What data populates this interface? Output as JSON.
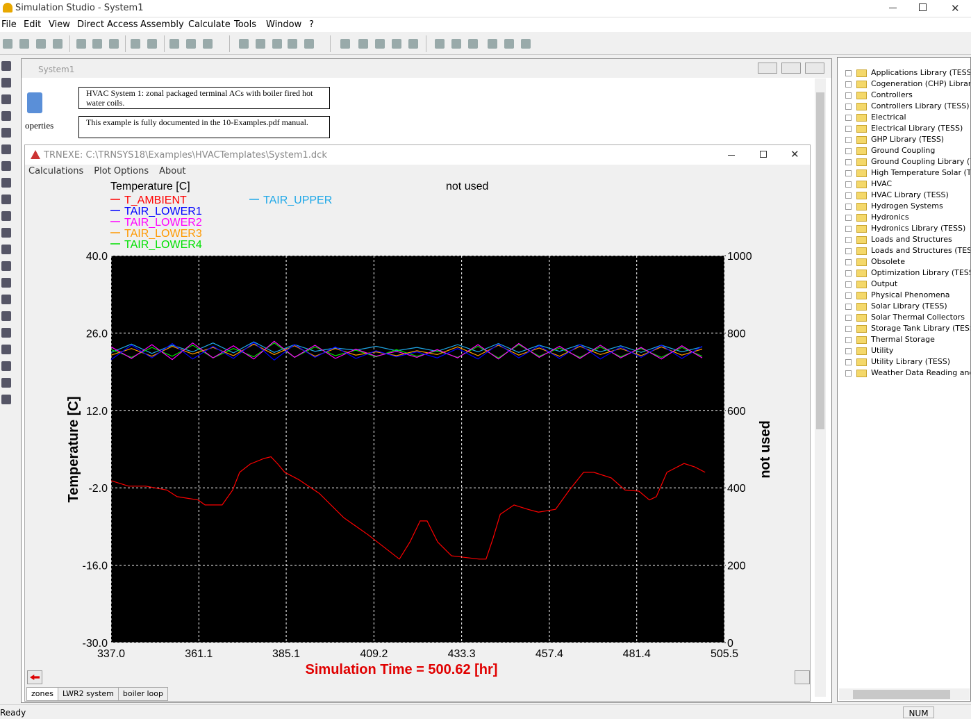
{
  "app": {
    "title": "Simulation Studio - System1",
    "menu": [
      "File",
      "Edit",
      "View",
      "Direct Access",
      "Assembly",
      "Calculate",
      "Tools",
      "Window",
      "?"
    ]
  },
  "child_window": {
    "title": "System1",
    "icon_label": "operties",
    "notes": [
      "HVAC System 1: zonal packaged terminal ACs with boiler fired hot water coils.",
      "This example is fully documented in the 10-Examples.pdf manual."
    ]
  },
  "plot_window": {
    "title": "TRNEXE: C:\\TRNSYS18\\Examples\\HVACTemplates\\System1.dck",
    "menu": [
      "Calculations",
      "Plot Options",
      "About"
    ],
    "time_label": "Simulation Time = 500.62 [hr]",
    "tabs": [
      "zones",
      "LWR2 system",
      "boiler loop"
    ]
  },
  "chart_data": {
    "type": "line",
    "left_legend_title": "Temperature [C]",
    "right_legend_title": "not used",
    "ylabel": "Temperature [C]",
    "y2label": "not used",
    "background": "#000000",
    "grid": true,
    "xlim": [
      337,
      505.5
    ],
    "ylim": [
      -30,
      40
    ],
    "y2lim": [
      0,
      1000
    ],
    "xticks": [
      {
        "value": 337,
        "label": "337.0"
      },
      361.1,
      385.1,
      409.2,
      433.3,
      457.4,
      481.4,
      505.5
    ],
    "yticks": [
      {
        "value": -30,
        "label": "-30.0"
      },
      {
        "value": -16,
        "label": "-16.0"
      },
      {
        "value": -2,
        "label": "-2.0"
      },
      {
        "value": 12,
        "label": "12.0"
      },
      {
        "value": 26,
        "label": "26.0"
      },
      {
        "value": 40,
        "label": "40.0"
      }
    ],
    "y2ticks": [
      0,
      200,
      400,
      600,
      800,
      1000
    ],
    "series": [
      {
        "name": "T_AMBIENT",
        "color": "#ff0000",
        "x": [
          337,
          341.8,
          346.5,
          352.3,
          355.1,
          360.9,
          362.8,
          367.5,
          370.4,
          372.3,
          375.2,
          379,
          380.9,
          382.8,
          384.7,
          388.5,
          394.2,
          400.9,
          407.6,
          416.2,
          419.1,
          421.9,
          423.8,
          426.7,
          430.5,
          438.1,
          440,
          441.9,
          443.9,
          447.7,
          451.5,
          454.4,
          459.1,
          462.9,
          466.8,
          469.6,
          474.4,
          478.2,
          482,
          484.9,
          486.8,
          489.7,
          494.4,
          497.3,
          500.2
        ],
        "values": [
          -0.7,
          -1.7,
          -1.7,
          -2.4,
          -3.6,
          -4.2,
          -5.1,
          -5.1,
          -2.4,
          0.8,
          2.3,
          3.3,
          3.6,
          2.3,
          0.8,
          -0.5,
          -3,
          -7.4,
          -10.5,
          -14.9,
          -11.8,
          -8,
          -8,
          -11.8,
          -14.3,
          -14.9,
          -14.9,
          -11.2,
          -6.8,
          -5.1,
          -5.9,
          -6.4,
          -5.9,
          -2.4,
          0.8,
          0.8,
          -0.2,
          -2.4,
          -2.6,
          -4.2,
          -3.6,
          0.8,
          2.4,
          1.8,
          0.8
        ]
      },
      {
        "name": "TAIR_LOWER1",
        "color": "#0000ff",
        "x": [
          337,
          342.6,
          348.2,
          353.8,
          359.4,
          365,
          370.6,
          376.2,
          381.8,
          387.4,
          393,
          398.6,
          404.2,
          409.8,
          415.4,
          421,
          426.6,
          432.2,
          437.8,
          443.4,
          449,
          454.6,
          460.2,
          465.8,
          471.4,
          477,
          482.6,
          488.2,
          493.8,
          499.4
        ],
        "values": [
          21.2,
          23.8,
          21.5,
          24.1,
          21.3,
          23.6,
          21.4,
          24.3,
          21.1,
          23.9,
          21.6,
          23.5,
          21.4,
          22.8,
          21.7,
          22.6,
          21.5,
          23.2,
          21.3,
          24,
          21.5,
          23.7,
          21.4,
          23.9,
          21.3,
          23.5,
          21.6,
          23.8,
          21.4,
          23.6
        ]
      },
      {
        "name": "TAIR_LOWER2",
        "color": "#ff00ff",
        "x": [
          337,
          342.6,
          348.2,
          353.8,
          359.4,
          365,
          370.6,
          376.2,
          381.8,
          387.4,
          393,
          398.6,
          404.2,
          409.8,
          415.4,
          421,
          426.6,
          432.2,
          437.8,
          443.4,
          449,
          454.6,
          460.2,
          465.8,
          471.4,
          477,
          482.6,
          488.2,
          493.8,
          499.4
        ],
        "values": [
          23.5,
          21.4,
          23.9,
          21.2,
          24.2,
          21.5,
          23.7,
          21.3,
          24.5,
          21.6,
          23.8,
          21.4,
          23.1,
          21.8,
          22.7,
          21.6,
          23,
          21.5,
          23.9,
          21.3,
          24.1,
          21.6,
          23.6,
          21.4,
          23.8,
          21.5,
          23.4,
          21.3,
          23.7,
          21.5
        ]
      },
      {
        "name": "TAIR_LOWER3",
        "color": "#ff9900",
        "x": [
          337,
          342.6,
          348.2,
          353.8,
          359.4,
          365,
          370.6,
          376.2,
          381.8,
          387.4,
          393,
          398.6,
          404.2,
          409.8,
          415.4,
          421,
          426.6,
          432.2,
          437.8,
          443.4,
          449,
          454.6,
          460.2,
          465.8,
          471.4,
          477,
          482.6,
          488.2,
          493.8,
          499.4
        ],
        "values": [
          22,
          23.2,
          21.8,
          23.6,
          22.2,
          23.4,
          21.9,
          24,
          22.1,
          23.7,
          21.8,
          23.2,
          22,
          22.6,
          21.9,
          22.8,
          22.1,
          23.5,
          21.9,
          23.8,
          22,
          23.3,
          21.8,
          23.6,
          22.1,
          23.2,
          21.9,
          23.5,
          22,
          23.1
        ]
      },
      {
        "name": "TAIR_LOWER4",
        "color": "#00e000",
        "x": [
          337,
          342.6,
          348.2,
          353.8,
          359.4,
          365,
          370.6,
          376.2,
          381.8,
          387.4,
          393,
          398.6,
          404.2,
          409.8,
          415.4,
          421,
          426.6,
          432.2,
          437.8,
          443.4,
          449,
          454.6,
          460.2,
          465.8,
          471.4,
          477,
          482.6,
          488.2,
          493.8,
          499.4
        ],
        "values": [
          23,
          21.6,
          23.4,
          21.8,
          23.8,
          21.5,
          23.2,
          21.7,
          24.2,
          21.6,
          23.5,
          21.9,
          22.9,
          21.7,
          23,
          21.8,
          22.8,
          21.6,
          23.6,
          21.5,
          23.9,
          21.8,
          23.3,
          21.6,
          23.5,
          21.7,
          23.2,
          21.6,
          23.4,
          21.8
        ]
      },
      {
        "name": "TAIR_UPPER",
        "color": "#1fa8e8",
        "x": [
          337,
          342.6,
          348.2,
          353.8,
          359.4,
          365,
          370.6,
          376.2,
          381.8,
          387.4,
          393,
          398.6,
          404.2,
          409.8,
          415.4,
          421,
          426.6,
          432.2,
          437.8,
          443.4,
          449,
          454.6,
          460.2,
          465.8,
          471.4,
          477,
          482.6,
          488.2,
          493.8,
          499.4
        ],
        "values": [
          22.5,
          24,
          22.3,
          23.8,
          22.6,
          24.2,
          22.4,
          24.4,
          22.5,
          23.9,
          22.7,
          23.3,
          22.9,
          23.6,
          22.8,
          23.4,
          22.7,
          23.9,
          22.6,
          24.1,
          22.5,
          23.8,
          22.7,
          23.9,
          22.6,
          23.7,
          22.5,
          23.8,
          22.6,
          23.5
        ]
      }
    ]
  },
  "library": {
    "items": [
      "Applications Library (TESS)",
      "Cogeneration (CHP) Library (TESS)",
      "Controllers",
      "Controllers Library (TESS)",
      "Electrical",
      "Electrical Library (TESS)",
      "GHP Library (TESS)",
      "Ground Coupling",
      "Ground Coupling Library (TESS)",
      "High Temperature Solar (TESS)",
      "HVAC",
      "HVAC Library (TESS)",
      "Hydrogen Systems",
      "Hydronics",
      "Hydronics Library (TESS)",
      "Loads and Structures",
      "Loads and Structures (TESS)",
      "Obsolete",
      "Optimization Library (TESS)",
      "Output",
      "Physical Phenomena",
      "Solar Library (TESS)",
      "Solar Thermal Collectors",
      "Storage Tank Library (TESS)",
      "Thermal Storage",
      "Utility",
      "Utility Library (TESS)",
      "Weather Data Reading and Processing"
    ]
  },
  "status_bar": {
    "left": "Ready",
    "right": "NUM"
  }
}
